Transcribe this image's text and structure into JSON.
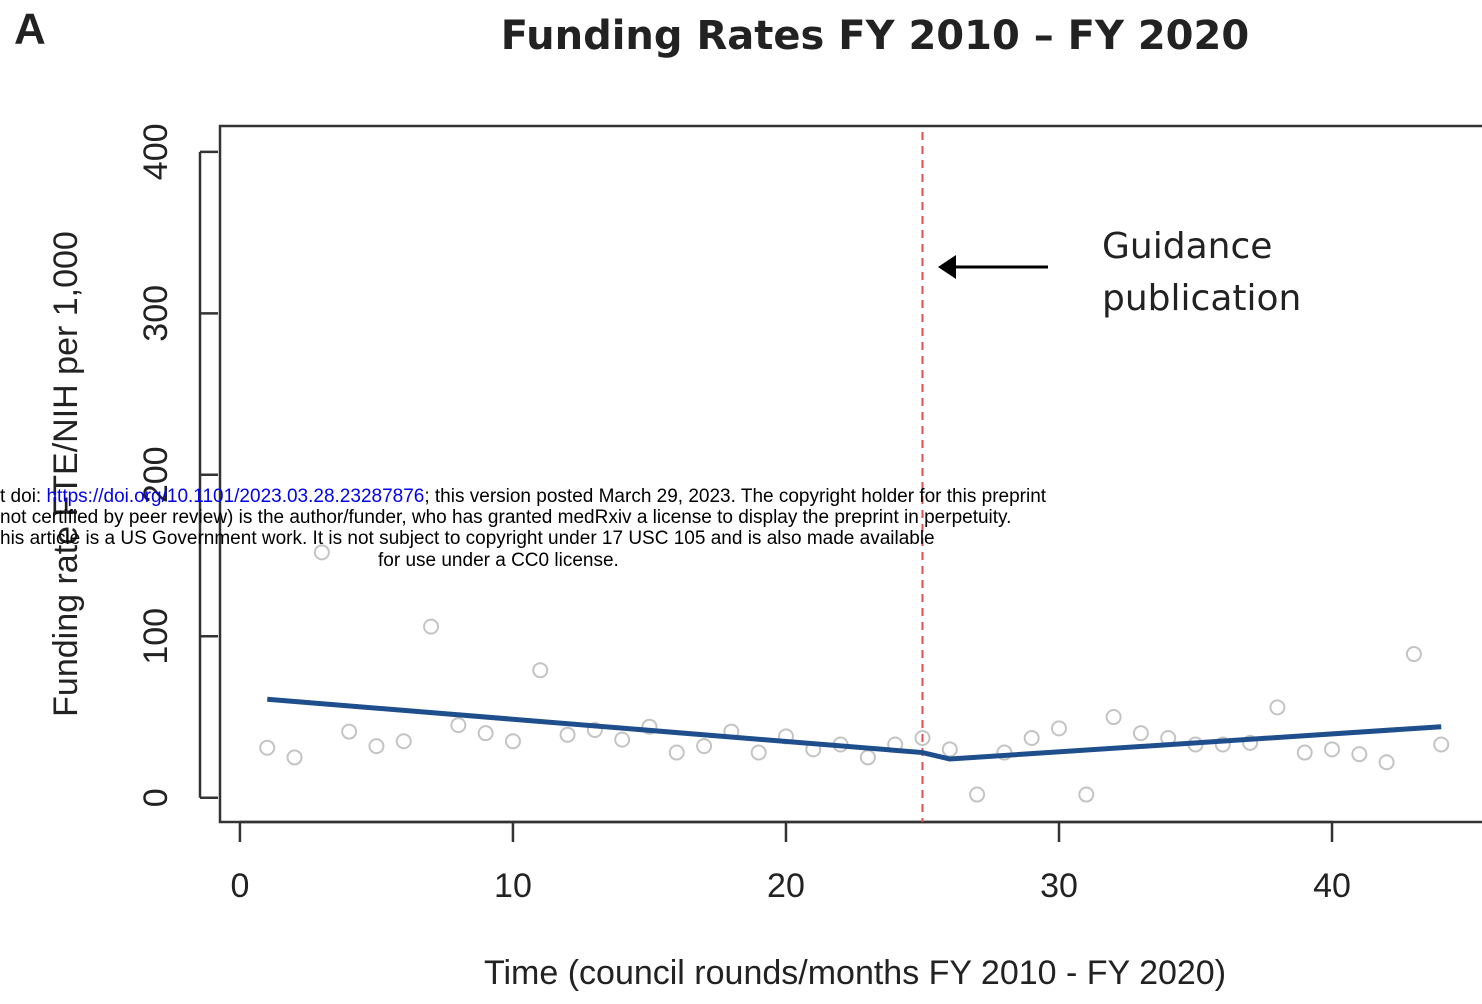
{
  "chart_data": {
    "type": "scatter",
    "panel": "A",
    "title": "Funding Rates FY 2010 – FY 2020",
    "x_label": "Time (council rounds/months FY 2010 - FY 2020)",
    "y_label": "Funding rate FTE/NIH per 1,000",
    "xlim": [
      -0.73,
      45.42
    ],
    "ylim": [
      -15,
      416
    ],
    "xticks": [
      0,
      10,
      20,
      30,
      40
    ],
    "yticks": [
      0,
      100,
      200,
      300,
      400
    ],
    "points": {
      "color": "#c4c4c4",
      "x": [
        1,
        2,
        3,
        4,
        5,
        6,
        7,
        8,
        9,
        10,
        11,
        12,
        13,
        14,
        15,
        16,
        17,
        18,
        19,
        20,
        21,
        22,
        23,
        24,
        25,
        26,
        27,
        28,
        29,
        30,
        31,
        32,
        33,
        34,
        35,
        36,
        37,
        38,
        39,
        40,
        41,
        42,
        43,
        44
      ],
      "values": [
        31,
        25,
        152,
        41,
        32,
        35,
        106,
        45,
        40,
        35,
        79,
        39,
        42,
        36,
        44,
        28,
        32,
        41,
        28,
        38,
        30,
        33,
        25,
        33,
        37,
        30,
        2,
        28,
        37,
        43,
        2,
        50,
        40,
        37,
        33,
        33,
        34,
        56,
        28,
        30,
        27,
        22,
        89,
        33
      ]
    },
    "trend": {
      "color": "#1f4e8c",
      "x": [
        1,
        25,
        26,
        44
      ],
      "values": [
        61,
        28,
        24,
        44
      ]
    },
    "vline": {
      "x": 25,
      "color": "#e05050"
    },
    "annotation": [
      "Guidance",
      "publication"
    ]
  },
  "watermark": {
    "lines": [
      {
        "prefix": "t doi: ",
        "link": "https://doi.org/10.1101/2023.03.28.23287876",
        "suffix": "; this version posted March 29, 2023. The copyright holder for this preprint"
      },
      {
        "text": "not certified by peer review) is the author/funder, who has granted medRxiv a license to display the preprint in perpetuity."
      },
      {
        "text": "his article is a US Government work. It is not subject to copyright under 17 USC 105 and is also made available"
      },
      {
        "text": "for use under a CC0 license."
      }
    ]
  }
}
